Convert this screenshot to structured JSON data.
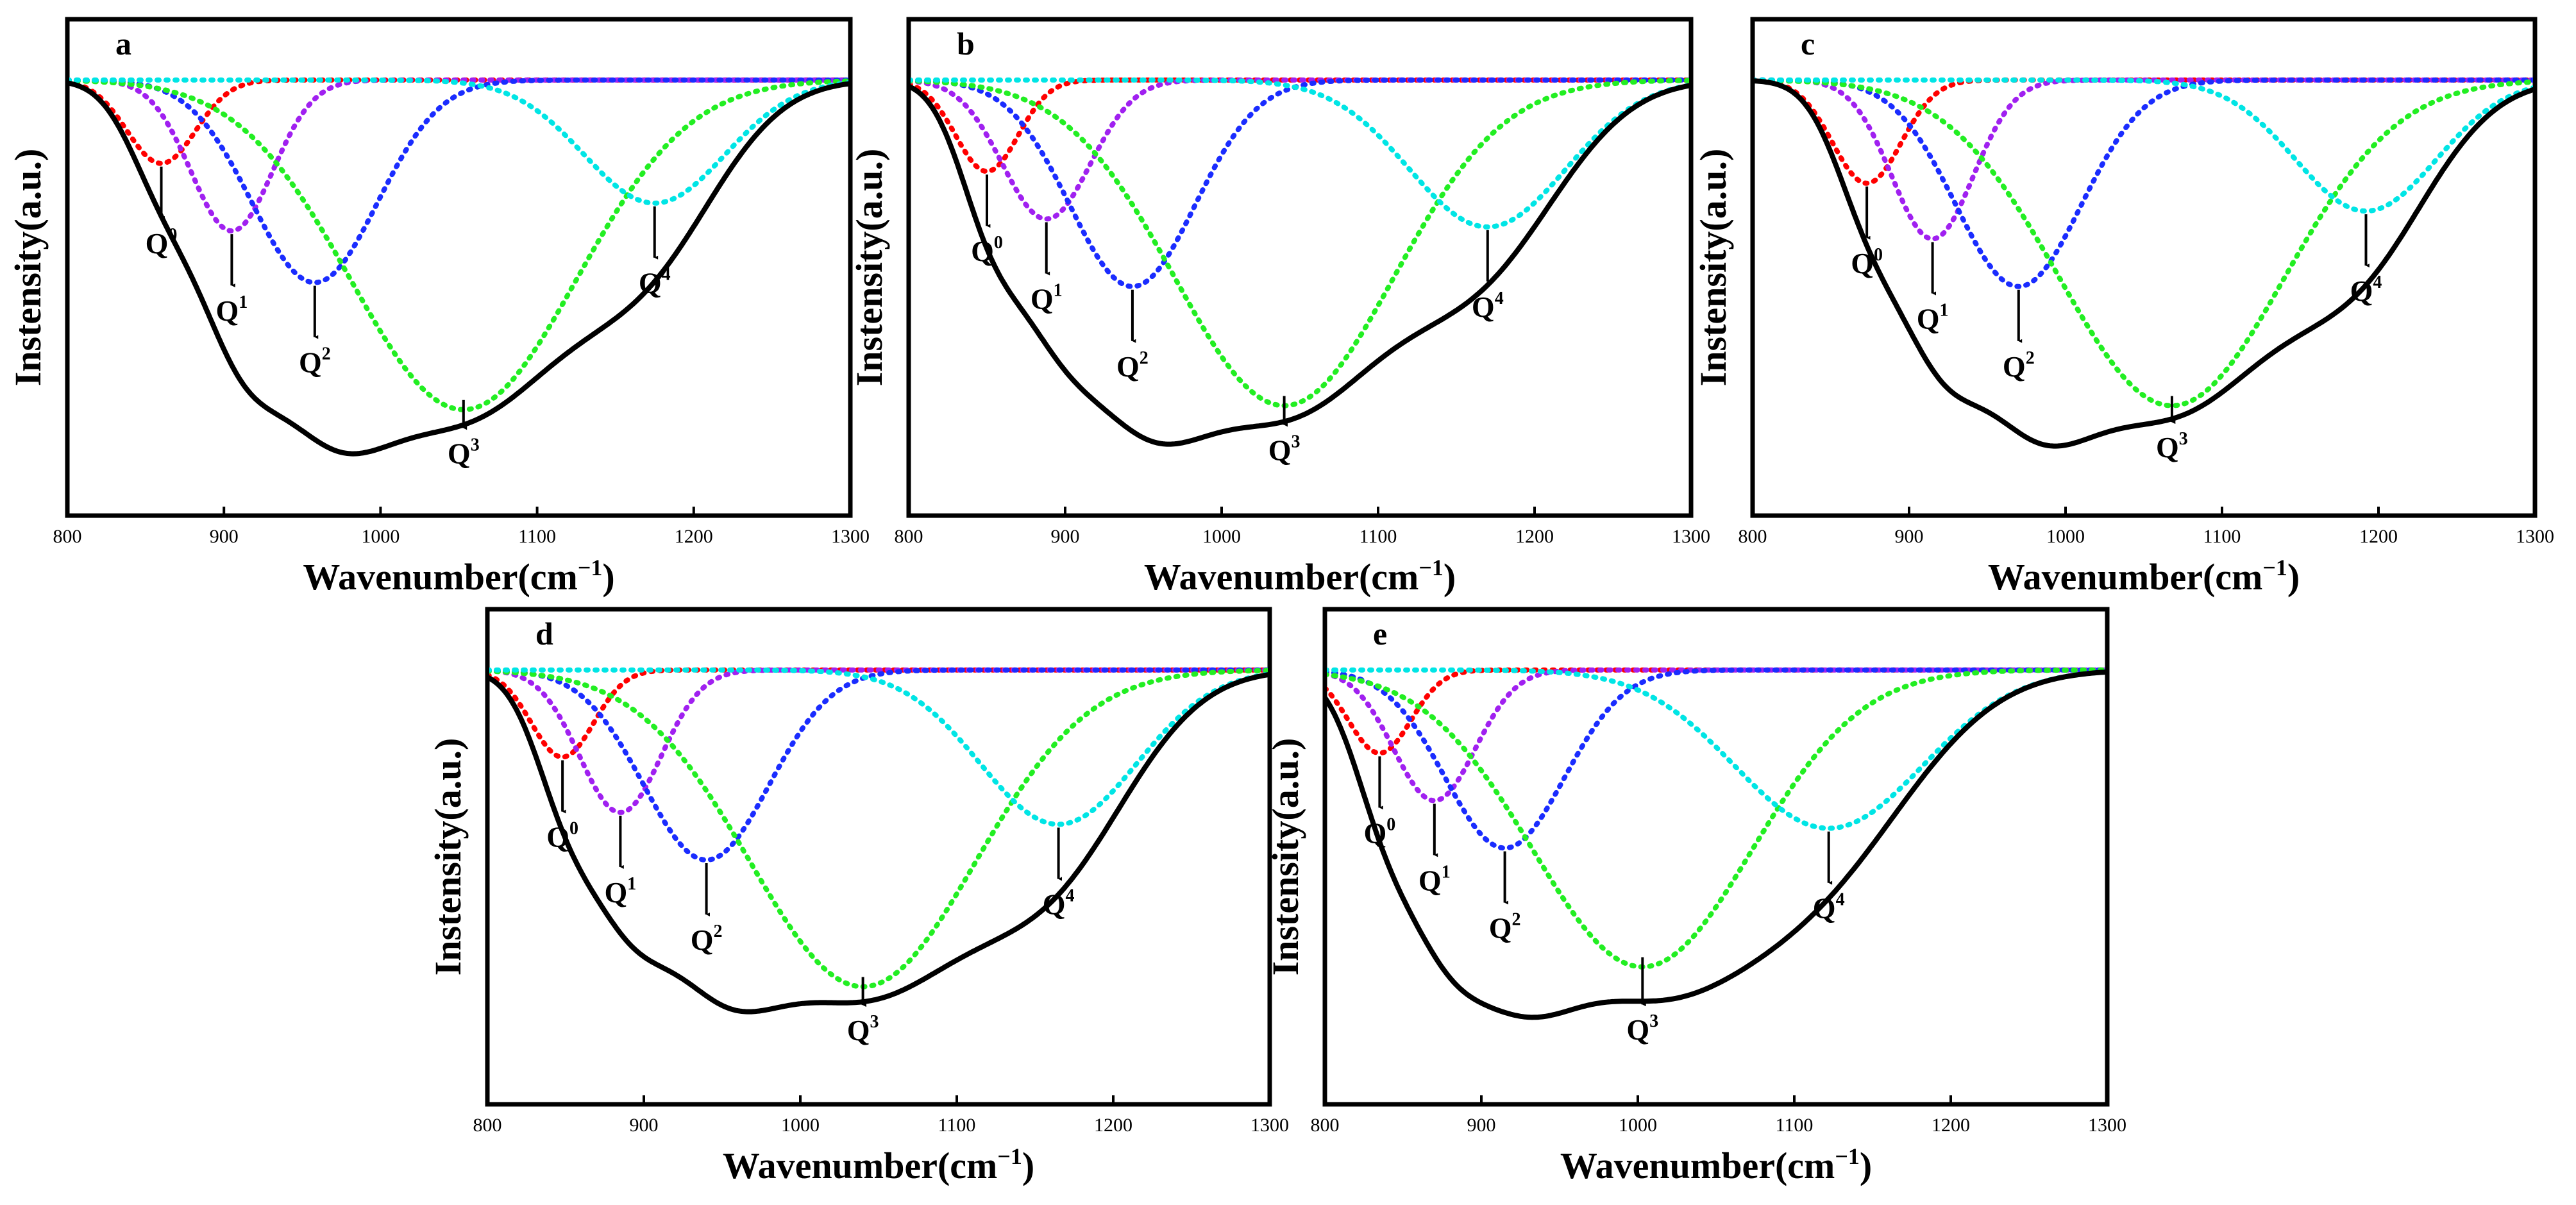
{
  "chart_data": [
    {
      "type": "line",
      "panel_label": "a",
      "xlabel": "Wavenumber(cm",
      "xlabel_sup": "−1",
      "xlabel_close": ")",
      "ylabel": "Instensity(a.u.)",
      "xlim": [
        800,
        1300
      ],
      "ylim": [
        -1.0,
        0.04
      ],
      "xticks": [
        "800",
        "900",
        "1000",
        "1100",
        "1200",
        "1300"
      ],
      "components": [
        {
          "name": "Q0",
          "color": "#ff0000",
          "center": 860,
          "depth": 0.21,
          "width": 22
        },
        {
          "name": "Q1",
          "color": "#a020f0",
          "center": 905,
          "depth": 0.38,
          "width": 26
        },
        {
          "name": "Q2",
          "color": "#1a2cff",
          "center": 958,
          "depth": 0.51,
          "width": 40
        },
        {
          "name": "Q3",
          "color": "#22ee22",
          "center": 1053,
          "depth": 0.83,
          "width": 72
        },
        {
          "name": "Q4",
          "color": "#00e5e5",
          "center": 1175,
          "depth": 0.31,
          "width": 45
        }
      ],
      "envelope": {
        "name": "Sum",
        "color": "#000000"
      },
      "annotations": [
        {
          "label": "Q",
          "sup": "0",
          "x": 860
        },
        {
          "label": "Q",
          "sup": "1",
          "x": 905
        },
        {
          "label": "Q",
          "sup": "2",
          "x": 958
        },
        {
          "label": "Q",
          "sup": "3",
          "x": 1053
        },
        {
          "label": "Q",
          "sup": "4",
          "x": 1175
        }
      ]
    },
    {
      "type": "line",
      "panel_label": "b",
      "xlabel": "Wavenumber(cm",
      "xlabel_sup": "−1",
      "xlabel_close": ")",
      "ylabel": "Instensity(a.u.)",
      "xlim": [
        800,
        1300
      ],
      "ylim": [
        -1.0,
        0.04
      ],
      "xticks": [
        "800",
        "900",
        "1000",
        "1100",
        "1200",
        "1300"
      ],
      "components": [
        {
          "name": "Q0",
          "color": "#ff0000",
          "center": 850,
          "depth": 0.23,
          "width": 20
        },
        {
          "name": "Q1",
          "color": "#a020f0",
          "center": 888,
          "depth": 0.35,
          "width": 28
        },
        {
          "name": "Q2",
          "color": "#1a2cff",
          "center": 943,
          "depth": 0.52,
          "width": 40
        },
        {
          "name": "Q3",
          "color": "#22ee22",
          "center": 1040,
          "depth": 0.82,
          "width": 70
        },
        {
          "name": "Q4",
          "color": "#00e5e5",
          "center": 1170,
          "depth": 0.37,
          "width": 50
        }
      ],
      "envelope": {
        "name": "Sum",
        "color": "#000000"
      },
      "annotations": [
        {
          "label": "Q",
          "sup": "0",
          "x": 850
        },
        {
          "label": "Q",
          "sup": "1",
          "x": 888
        },
        {
          "label": "Q",
          "sup": "2",
          "x": 943
        },
        {
          "label": "Q",
          "sup": "3",
          "x": 1040
        },
        {
          "label": "Q",
          "sup": "4",
          "x": 1170
        }
      ]
    },
    {
      "type": "line",
      "panel_label": "c",
      "xlabel": "Wavenumber(cm",
      "xlabel_sup": "−1",
      "xlabel_close": ")",
      "ylabel": "Instensity(a.u.)",
      "xlim": [
        800,
        1300
      ],
      "ylim": [
        -1.0,
        0.04
      ],
      "xticks": [
        "800",
        "900",
        "1000",
        "1100",
        "1200",
        "1300"
      ],
      "components": [
        {
          "name": "Q0",
          "color": "#ff0000",
          "center": 873,
          "depth": 0.26,
          "width": 22
        },
        {
          "name": "Q1",
          "color": "#a020f0",
          "center": 915,
          "depth": 0.4,
          "width": 26
        },
        {
          "name": "Q2",
          "color": "#1a2cff",
          "center": 970,
          "depth": 0.52,
          "width": 40
        },
        {
          "name": "Q3",
          "color": "#22ee22",
          "center": 1068,
          "depth": 0.82,
          "width": 72
        },
        {
          "name": "Q4",
          "color": "#00e5e5",
          "center": 1192,
          "depth": 0.33,
          "width": 45
        }
      ],
      "envelope": {
        "name": "Sum",
        "color": "#000000"
      },
      "annotations": [
        {
          "label": "Q",
          "sup": "0",
          "x": 873
        },
        {
          "label": "Q",
          "sup": "1",
          "x": 915
        },
        {
          "label": "Q",
          "sup": "2",
          "x": 970
        },
        {
          "label": "Q",
          "sup": "3",
          "x": 1068
        },
        {
          "label": "Q",
          "sup": "4",
          "x": 1192
        }
      ]
    },
    {
      "type": "line",
      "panel_label": "d",
      "xlabel": "Wavenumber(cm",
      "xlabel_sup": "−1",
      "xlabel_close": ")",
      "ylabel": "Instensity(a.u.)",
      "xlim": [
        800,
        1300
      ],
      "ylim": [
        -1.0,
        0.04
      ],
      "xticks": [
        "800",
        "900",
        "1000",
        "1100",
        "1200",
        "1300"
      ],
      "components": [
        {
          "name": "Q0",
          "color": "#ff0000",
          "center": 848,
          "depth": 0.22,
          "width": 20
        },
        {
          "name": "Q1",
          "color": "#a020f0",
          "center": 885,
          "depth": 0.36,
          "width": 26
        },
        {
          "name": "Q2",
          "color": "#1a2cff",
          "center": 940,
          "depth": 0.48,
          "width": 40
        },
        {
          "name": "Q3",
          "color": "#22ee22",
          "center": 1040,
          "depth": 0.8,
          "width": 72
        },
        {
          "name": "Q4",
          "color": "#00e5e5",
          "center": 1165,
          "depth": 0.39,
          "width": 50
        }
      ],
      "envelope": {
        "name": "Sum",
        "color": "#000000"
      },
      "annotations": [
        {
          "label": "Q",
          "sup": "0",
          "x": 848
        },
        {
          "label": "Q",
          "sup": "1",
          "x": 885
        },
        {
          "label": "Q",
          "sup": "2",
          "x": 940
        },
        {
          "label": "Q",
          "sup": "3",
          "x": 1040
        },
        {
          "label": "Q",
          "sup": "4",
          "x": 1165
        }
      ]
    },
    {
      "type": "line",
      "panel_label": "e",
      "xlabel": "Wavenumber(cm",
      "xlabel_sup": "−1",
      "xlabel_close": ")",
      "ylabel": "Instensity(a.u.)",
      "xlim": [
        800,
        1300
      ],
      "ylim": [
        -1.0,
        0.04
      ],
      "xticks": [
        "800",
        "900",
        "1000",
        "1100",
        "1200",
        "1300"
      ],
      "components": [
        {
          "name": "Q0",
          "color": "#ff0000",
          "center": 835,
          "depth": 0.21,
          "width": 20
        },
        {
          "name": "Q1",
          "color": "#a020f0",
          "center": 870,
          "depth": 0.33,
          "width": 26
        },
        {
          "name": "Q2",
          "color": "#1a2cff",
          "center": 915,
          "depth": 0.45,
          "width": 38
        },
        {
          "name": "Q3",
          "color": "#22ee22",
          "center": 1003,
          "depth": 0.75,
          "width": 70
        },
        {
          "name": "Q4",
          "color": "#00e5e5",
          "center": 1122,
          "depth": 0.4,
          "width": 60
        }
      ],
      "envelope": {
        "name": "Sum",
        "color": "#000000"
      },
      "annotations": [
        {
          "label": "Q",
          "sup": "0",
          "x": 835
        },
        {
          "label": "Q",
          "sup": "1",
          "x": 870
        },
        {
          "label": "Q",
          "sup": "2",
          "x": 915
        },
        {
          "label": "Q",
          "sup": "3",
          "x": 1003
        },
        {
          "label": "Q",
          "sup": "4",
          "x": 1122
        }
      ]
    }
  ]
}
